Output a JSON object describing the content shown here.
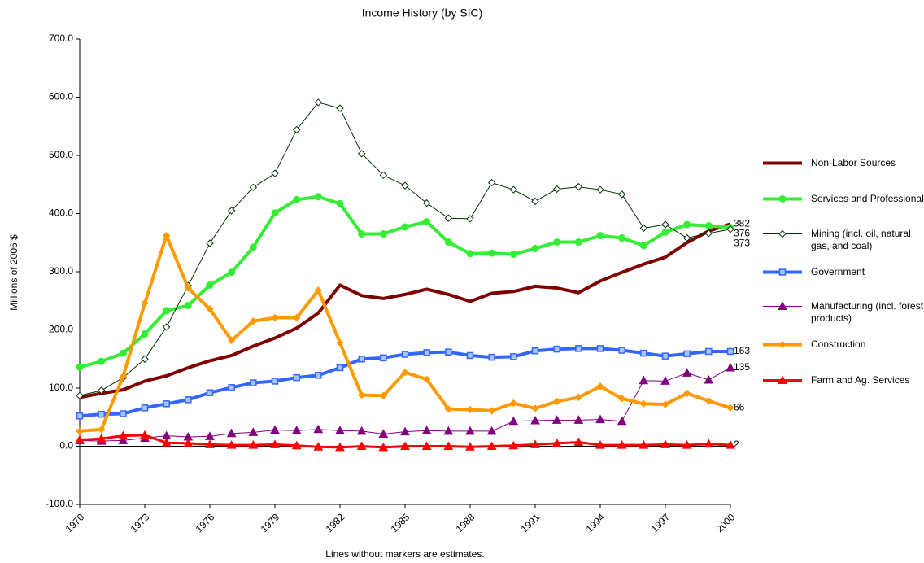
{
  "chart_data": {
    "type": "line",
    "title": "Income History (by SIC)",
    "y_label": "Millions of 2006 $",
    "note": "Lines without markers are estimates.",
    "x": [
      1970,
      1971,
      1972,
      1973,
      1974,
      1975,
      1976,
      1977,
      1978,
      1979,
      1980,
      1981,
      1982,
      1983,
      1984,
      1985,
      1986,
      1987,
      1988,
      1989,
      1990,
      1991,
      1992,
      1993,
      1994,
      1995,
      1996,
      1997,
      1998,
      1999,
      2000
    ],
    "xlim": [
      1970,
      2000
    ],
    "xticks": [
      1970,
      1973,
      1976,
      1979,
      1982,
      1985,
      1988,
      1991,
      1994,
      1997,
      2000
    ],
    "ylim": [
      -100,
      700
    ],
    "yticks": [
      {
        "value": -100,
        "label": "-100.0"
      },
      {
        "value": 0,
        "label": "0.0"
      },
      {
        "value": 100,
        "label": "100.0"
      },
      {
        "value": 200,
        "label": "200.0"
      },
      {
        "value": 300,
        "label": "300.0"
      },
      {
        "value": 400,
        "label": "400.0"
      },
      {
        "value": 500,
        "label": "500.0"
      },
      {
        "value": 600,
        "label": "600.0"
      },
      {
        "value": 700,
        "label": "700.0"
      }
    ],
    "legend": "right",
    "series": [
      {
        "name": "Non-Labor Sources",
        "color": "#800000",
        "marker": "none",
        "line_width": 4,
        "values": [
          84,
          91,
          97,
          112,
          121,
          135,
          147,
          156,
          172,
          186,
          203,
          229,
          277,
          259,
          254,
          261,
          270,
          261,
          249,
          263,
          266,
          275,
          272,
          264,
          284,
          299,
          313,
          325,
          350,
          370,
          382
        ]
      },
      {
        "name": "Services and Professional",
        "color": "#33ee33",
        "marker": "circle",
        "line_width": 4,
        "values": [
          136,
          146,
          160,
          193,
          233,
          242,
          277,
          299,
          342,
          401,
          424,
          429,
          417,
          365,
          365,
          377,
          386,
          351,
          331,
          332,
          330,
          340,
          351,
          351,
          362,
          358,
          345,
          368,
          381,
          379,
          376
        ]
      },
      {
        "name": "Mining (incl. oil, natural gas, and coal)",
        "color": "#003300",
        "marker": "diamond",
        "line_width": 1,
        "values": [
          87,
          96,
          118,
          150,
          205,
          276,
          349,
          405,
          445,
          469,
          544,
          591,
          581,
          503,
          466,
          448,
          418,
          392,
          391,
          453,
          441,
          421,
          442,
          446,
          441,
          433,
          375,
          381,
          358,
          366,
          373
        ]
      },
      {
        "name": "Government",
        "color": "#3366ff",
        "marker": "square",
        "line_width": 4,
        "values": [
          52,
          55,
          56,
          66,
          73,
          80,
          92,
          101,
          109,
          112,
          118,
          122,
          135,
          150,
          152,
          158,
          161,
          162,
          156,
          153,
          154,
          164,
          167,
          168,
          168,
          165,
          160,
          155,
          159,
          163,
          163
        ]
      },
      {
        "name": "Manufacturing (incl. forest products)",
        "color": "#800080",
        "marker": "triangle",
        "line_width": 1,
        "values": [
          10,
          9,
          10,
          14,
          18,
          16,
          17,
          22,
          24,
          28,
          27,
          29,
          27,
          26,
          21,
          25,
          27,
          26,
          26,
          26,
          43,
          44,
          45,
          45,
          46,
          43,
          113,
          112,
          126,
          114,
          135
        ]
      },
      {
        "name": "Construction",
        "color": "#ff9900",
        "marker": "diamond",
        "line_width": 4,
        "values": [
          26,
          29,
          120,
          246,
          362,
          272,
          236,
          182,
          215,
          221,
          221,
          268,
          178,
          88,
          87,
          127,
          115,
          64,
          63,
          61,
          74,
          65,
          77,
          84,
          103,
          82,
          73,
          72,
          91,
          78,
          66
        ]
      },
      {
        "name": "Farm and Ag. Services",
        "color": "#ff0000",
        "marker": "triangle",
        "line_width": 3,
        "values": [
          11,
          13,
          18,
          19,
          6,
          5,
          3,
          2,
          2,
          3,
          1,
          -1,
          -2,
          0,
          -2,
          0,
          0,
          0,
          -1,
          0,
          1,
          3,
          5,
          7,
          2,
          2,
          2,
          3,
          2,
          4,
          2
        ]
      }
    ]
  }
}
